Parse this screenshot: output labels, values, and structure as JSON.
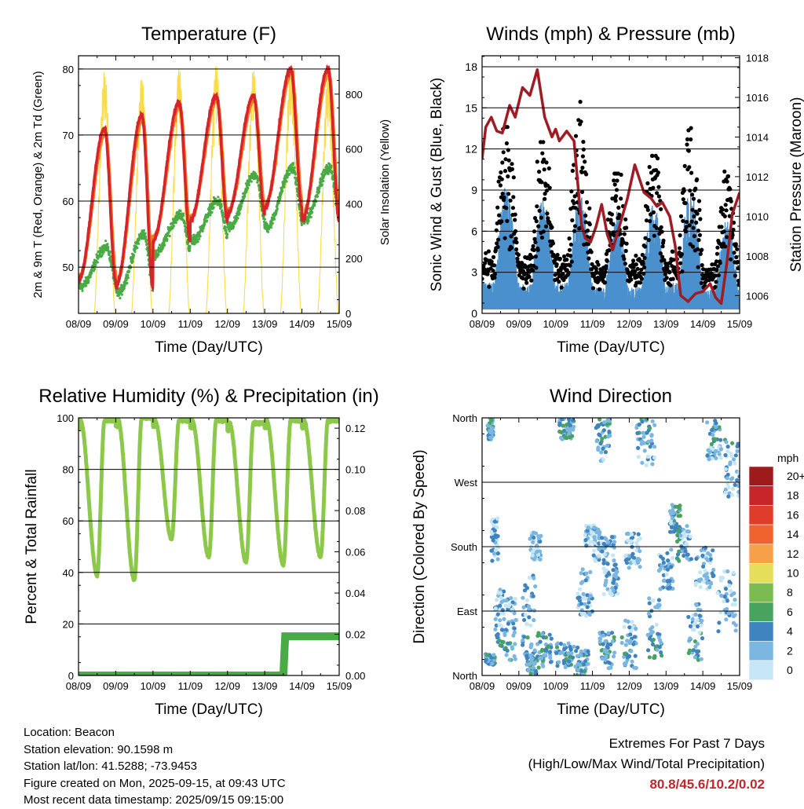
{
  "chart_data": [
    {
      "type": "line",
      "title": "Temperature (F)",
      "xlabel": "Time (Day/UTC)",
      "ylabel": "2m & 9m T (Red, Orange) & 2m Td (Green)",
      "ylabel_right": "Solar Insolation (Yellow)",
      "x_ticks": [
        "08/09",
        "09/09",
        "10/09",
        "11/09",
        "12/09",
        "13/09",
        "14/09",
        "15/09"
      ],
      "ylim": [
        43,
        82
      ],
      "y_ticks": [
        50,
        60,
        70,
        80
      ],
      "ylim_right": [
        0,
        940
      ],
      "y_ticks_right": [
        0,
        200,
        400,
        600,
        800
      ],
      "grid": "horizontal",
      "colors": {
        "temp_2m": "#d7242a",
        "temp_9m": "#f07a24",
        "dewpoint": "#4aaa45",
        "solar": "#f8dc4a"
      },
      "daily_max_temp": [
        71,
        73,
        75,
        76,
        76,
        80,
        80
      ],
      "daily_min_temp": [
        48,
        47,
        54,
        57,
        58,
        59,
        57
      ],
      "daily_max_dewpoint": [
        53,
        55,
        58,
        60,
        64,
        65,
        65
      ],
      "daily_min_dewpoint": [
        47,
        46,
        52,
        54,
        56,
        56,
        57
      ],
      "daily_peak_solar": [
        890,
        870,
        905,
        915,
        900,
        905,
        875
      ]
    },
    {
      "type": "scatter",
      "title": "Winds (mph) & Pressure (mb)",
      "xlabel": "Time (Day/UTC)",
      "ylabel": "Sonic Wind & Gust (Blue, Black)",
      "ylabel_right": "Station Pressure (Maroon)",
      "x_ticks": [
        "08/09",
        "09/09",
        "10/09",
        "11/09",
        "12/09",
        "13/09",
        "14/09",
        "15/09"
      ],
      "ylim": [
        0,
        18.8
      ],
      "y_ticks": [
        0,
        3,
        6,
        9,
        12,
        15,
        18
      ],
      "ylim_right": [
        1005.1,
        1018.1
      ],
      "y_ticks_right": [
        1006,
        1008,
        1010,
        1012,
        1014,
        1016,
        1018
      ],
      "grid": "horizontal",
      "colors": {
        "wind": "#4a90cd",
        "gust": "#000000",
        "pressure": "#a01c24"
      },
      "pressure": {
        "x": [
          0,
          0.1,
          0.25,
          0.4,
          0.55,
          0.75,
          0.9,
          1.1,
          1.3,
          1.5,
          1.7,
          1.9,
          2.0,
          2.1,
          2.3,
          2.5,
          2.7,
          2.8,
          2.95,
          3.1,
          3.25,
          3.4,
          3.55,
          3.75,
          3.95,
          4.15,
          4.4,
          4.6,
          4.75,
          4.9,
          5.1,
          5.25,
          5.4,
          5.6,
          5.8,
          6.0,
          6.2,
          6.35,
          6.5,
          6.65,
          6.8,
          7.0
        ],
        "y": [
          1012.9,
          1014.5,
          1015.0,
          1014.3,
          1014.2,
          1015.6,
          1015.0,
          1016.5,
          1016.1,
          1017.4,
          1015.0,
          1014.0,
          1014.4,
          1013.8,
          1014.3,
          1013.8,
          1009.6,
          1008.9,
          1008.7,
          1009.5,
          1010.6,
          1009.1,
          1008.3,
          1009.6,
          1010.9,
          1012.6,
          1011.2,
          1010.9,
          1010.5,
          1010.7,
          1010.0,
          1008.5,
          1006.0,
          1005.7,
          1006.1,
          1006.2,
          1006.6,
          1005.9,
          1005.6,
          1007.6,
          1010.1,
          1011.2
        ]
      },
      "daily_max_wind": [
        9.5,
        8.5,
        9.0,
        7.5,
        8.0,
        9.0,
        7.0
      ],
      "daily_max_gust": [
        13.6,
        12.5,
        15.8,
        10.2,
        11.5,
        14.3,
        10.8
      ]
    },
    {
      "type": "line",
      "title": "Relative Humidity (%) & Precipitation (in)",
      "xlabel": "Time (Day/UTC)",
      "ylabel": "Percent & Total Rainfall",
      "x_ticks": [
        "08/09",
        "09/09",
        "10/09",
        "11/09",
        "12/09",
        "13/09",
        "14/09",
        "15/09"
      ],
      "ylim": [
        0,
        100
      ],
      "y_ticks": [
        0,
        20,
        40,
        60,
        80,
        100
      ],
      "ylim_right": [
        0,
        0.125
      ],
      "y_ticks_right": [
        "0.00",
        "0.02",
        "0.04",
        "0.06",
        "0.08",
        "0.10",
        "0.12"
      ],
      "grid": "horizontal",
      "colors": {
        "rh": "#8cc84a",
        "precip": "#4aaa45"
      },
      "daily_max_rh": [
        99,
        100,
        99,
        99,
        98,
        99,
        99
      ],
      "daily_min_rh": [
        39,
        37,
        53,
        46,
        44,
        43,
        46
      ],
      "precip_total": {
        "x": [
          0,
          5.5,
          5.55,
          7.0
        ],
        "y": [
          0,
          0,
          0.019,
          0.019
        ]
      }
    },
    {
      "type": "scatter",
      "title": "Wind Direction",
      "xlabel": "Time (Day/UTC)",
      "ylabel": "Direction (Colored By Speed)",
      "x_ticks": [
        "08/09",
        "09/09",
        "10/09",
        "11/09",
        "12/09",
        "13/09",
        "14/09",
        "15/09"
      ],
      "y_ticks": [
        "North",
        "East",
        "South",
        "West",
        "North"
      ],
      "ylim": [
        0,
        360
      ],
      "grid": "horizontal",
      "colorbar": {
        "title": "mph",
        "labels": [
          "20+",
          "18",
          "16",
          "14",
          "12",
          "10",
          "8",
          "6",
          "4",
          "2",
          "0"
        ],
        "colors": [
          "#9e1a1d",
          "#c8252a",
          "#e03c2c",
          "#f0632e",
          "#f7a04a",
          "#e5de5a",
          "#7bbb52",
          "#47a35e",
          "#3f83bf",
          "#7cb7e2",
          "#c6e6f6"
        ]
      }
    }
  ],
  "info": {
    "location": "Location: Beacon",
    "elevation": "Station elevation: 90.1598 m",
    "latlon": "Station lat/lon: 41.5288; -73.9453",
    "created": "Figure created on Mon, 2025-09-15, at 09:43 UTC",
    "recent": "Most recent data timestamp: 2025/09/15 09:15:00"
  },
  "extremes": {
    "title": "Extremes For Past 7 Days",
    "subtitle": "(High/Low/Max Wind/Total Precipitation)",
    "values": "80.8/45.6/10.2/0.02"
  }
}
